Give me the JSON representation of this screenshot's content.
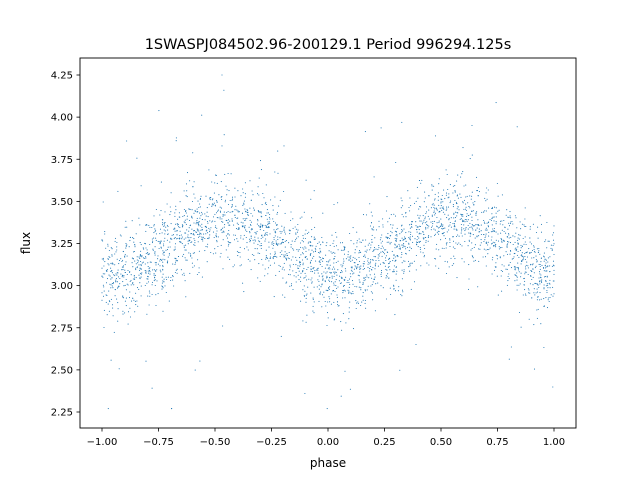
{
  "chart_data": {
    "type": "scatter",
    "title": "1SWASPJ084502.96-200129.1 Period 996294.125s",
    "xlabel": "phase",
    "ylabel": "flux",
    "xlim": [
      -1.1,
      1.1
    ],
    "ylim": [
      2.15,
      4.35
    ],
    "xticks": [
      -1.0,
      -0.75,
      -0.5,
      -0.25,
      0.0,
      0.25,
      0.5,
      0.75,
      1.0
    ],
    "xtick_labels": [
      "−1.00",
      "−0.75",
      "−0.50",
      "−0.25",
      "0.00",
      "0.25",
      "0.50",
      "0.75",
      "1.00"
    ],
    "yticks": [
      2.25,
      2.5,
      2.75,
      3.0,
      3.25,
      3.5,
      3.75,
      4.0,
      4.25
    ],
    "ytick_labels": [
      "2.25",
      "2.50",
      "2.75",
      "3.00",
      "3.25",
      "3.50",
      "3.75",
      "4.00",
      "4.25"
    ],
    "grid": false,
    "point_color": "#1f77b4",
    "binned_phase": [
      -1.0,
      -0.9,
      -0.8,
      -0.7,
      -0.6,
      -0.5,
      -0.4,
      -0.3,
      -0.2,
      -0.1,
      0.0,
      0.1,
      0.2,
      0.3,
      0.4,
      0.5,
      0.6,
      0.7,
      0.8,
      0.9,
      1.0
    ],
    "binned_mean_flux": [
      3.07,
      3.07,
      3.13,
      3.23,
      3.33,
      3.39,
      3.39,
      3.33,
      3.23,
      3.13,
      3.07,
      3.07,
      3.13,
      3.23,
      3.33,
      3.39,
      3.39,
      3.33,
      3.23,
      3.13,
      3.07
    ],
    "flux_scatter_std": 0.12,
    "flux_range": [
      2.27,
      4.25
    ],
    "approx_point_count": 3000
  }
}
